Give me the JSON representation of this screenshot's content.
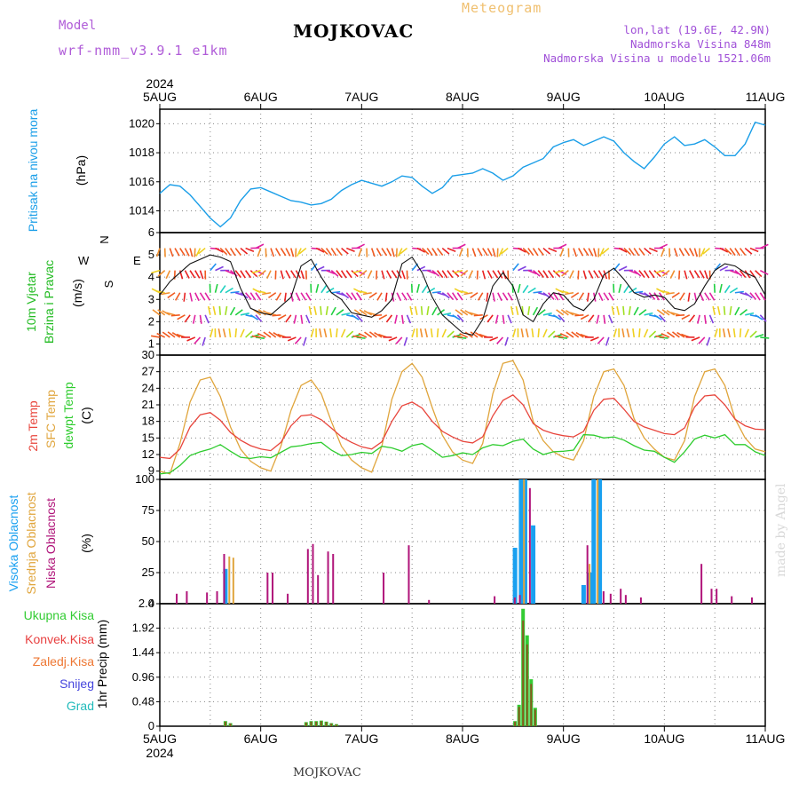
{
  "header": {
    "model_label": "Model",
    "model_name": "wrf-nmm_v3.9.1  e1km",
    "station": "MOJKOVAC",
    "meteogram_label": "Meteogram",
    "coords": "lon,lat (19.6E, 42.9N)",
    "elevation": "Nadmorska Visina 848m",
    "elevation_model": "Nadmorska Visina u modelu 1521.06m"
  },
  "footer": {
    "station": "MOJKOVAC",
    "watermark": "made by Angel"
  },
  "time_axis": {
    "year": "2024",
    "labels": [
      "5AUG",
      "6AUG",
      "7AUG",
      "8AUG",
      "9AUG",
      "10AUG",
      "11AUG"
    ]
  },
  "colors": {
    "pressure": "#1a9ee8",
    "temp2m": "#e8453c",
    "sfc_temp": "#e0a53c",
    "dewpt": "#2ecc2e",
    "high_cloud": "#19a0f0",
    "mid_cloud": "#e0a53c",
    "low_cloud": "#b0147a",
    "total_precip": "#33cc33",
    "conv_precip": "#e84040",
    "frozen": "#ee7733",
    "snow": "#4444dd",
    "hail": "#22bbbb"
  },
  "chart_data": [
    {
      "type": "line",
      "panel": "pressure",
      "ylabel": "Pritisak na nivou mora",
      "unit": "(hPa)",
      "ylim": [
        1012.5,
        1021
      ],
      "yticks": [
        1014,
        1016,
        1018,
        1020
      ],
      "grid": true,
      "x_days": [
        0,
        0.1,
        0.2,
        0.3,
        0.4,
        0.5,
        0.6,
        0.7,
        0.8,
        0.9,
        1,
        1.1,
        1.2,
        1.3,
        1.4,
        1.5,
        1.6,
        1.7,
        1.8,
        1.9,
        2,
        2.1,
        2.2,
        2.3,
        2.4,
        2.5,
        2.6,
        2.7,
        2.8,
        2.9,
        3,
        3.1,
        3.2,
        3.3,
        3.4,
        3.5,
        3.6,
        3.7,
        3.8,
        3.9,
        4,
        4.1,
        4.2,
        4.3,
        4.4,
        4.5,
        4.6,
        4.7,
        4.8,
        4.9,
        5,
        5.1,
        5.2,
        5.3,
        5.4,
        5.5,
        5.6,
        5.7,
        5.8,
        5.9,
        6
      ],
      "series": [
        {
          "name": "",
          "values": [
            1015.2,
            1015.8,
            1015.7,
            1015.1,
            1014.3,
            1013.5,
            1012.9,
            1013.5,
            1014.7,
            1015.5,
            1015.6,
            1015.3,
            1015.0,
            1014.7,
            1014.6,
            1014.4,
            1014.5,
            1014.8,
            1015.4,
            1015.8,
            1016.1,
            1015.9,
            1015.7,
            1016.0,
            1016.4,
            1016.3,
            1015.7,
            1015.2,
            1015.6,
            1016.4,
            1016.5,
            1016.6,
            1016.9,
            1016.6,
            1016.1,
            1016.4,
            1017.0,
            1017.3,
            1017.6,
            1018.4,
            1018.7,
            1018.9,
            1018.5,
            1018.8,
            1019.1,
            1018.8,
            1018.0,
            1017.4,
            1016.9,
            1017.7,
            1018.6,
            1019.1,
            1018.5,
            1018.6,
            1018.9,
            1018.4,
            1017.8,
            1017.8,
            1018.6,
            1020.1,
            1019.9
          ]
        }
      ]
    },
    {
      "type": "line",
      "panel": "wind",
      "ylabel": "10m Vjetar Brzina i Pravac",
      "unit": "(m/s)",
      "compass": {
        "n": "N",
        "w": "W",
        "e": "E",
        "s": "S"
      },
      "ylim": [
        0.5,
        6
      ],
      "yticks": [
        1,
        2,
        3,
        4,
        5,
        6
      ],
      "grid": true,
      "x_days": [
        0,
        0.1,
        0.2,
        0.3,
        0.4,
        0.5,
        0.6,
        0.7,
        0.8,
        0.9,
        1,
        1.1,
        1.2,
        1.3,
        1.4,
        1.5,
        1.6,
        1.7,
        1.8,
        1.9,
        2,
        2.1,
        2.2,
        2.3,
        2.4,
        2.5,
        2.6,
        2.7,
        2.8,
        2.9,
        3,
        3.1,
        3.2,
        3.3,
        3.4,
        3.5,
        3.6,
        3.7,
        3.8,
        3.9,
        4,
        4.1,
        4.2,
        4.3,
        4.4,
        4.5,
        4.6,
        4.7,
        4.8,
        4.9,
        5,
        5.1,
        5.2,
        5.3,
        5.4,
        5.5,
        5.6,
        5.7,
        5.8,
        5.9,
        6
      ],
      "series": [
        {
          "name": "",
          "values": [
            3.2,
            3.8,
            4.2,
            4.6,
            4.8,
            5.0,
            4.9,
            4.7,
            3.5,
            2.6,
            2.4,
            2.3,
            2.7,
            3.1,
            4.5,
            4.8,
            4.0,
            3.3,
            3.0,
            2.4,
            2.3,
            2.2,
            2.5,
            3.0,
            4.6,
            4.9,
            4.2,
            3.1,
            2.3,
            1.9,
            1.5,
            1.4,
            2.1,
            3.6,
            4.2,
            3.6,
            2.3,
            2.0,
            2.8,
            3.3,
            3.2,
            2.7,
            2.5,
            3.0,
            4.1,
            4.4,
            3.9,
            3.3,
            3.1,
            3.2,
            3.1,
            2.6,
            2.5,
            2.8,
            3.6,
            4.3,
            4.6,
            4.5,
            4.2,
            4.0,
            3.2
          ]
        }
      ]
    },
    {
      "type": "line",
      "panel": "temperature",
      "ylabel": "2m Temp / SFC Temp / dewpt Temp",
      "unit": "(C)",
      "ylim": [
        7.5,
        30
      ],
      "yticks": [
        9,
        12,
        15,
        18,
        21,
        24,
        27,
        30
      ],
      "grid": true,
      "x_days": [
        0,
        0.1,
        0.2,
        0.3,
        0.4,
        0.5,
        0.6,
        0.7,
        0.8,
        0.9,
        1,
        1.1,
        1.2,
        1.3,
        1.4,
        1.5,
        1.6,
        1.7,
        1.8,
        1.9,
        2,
        2.1,
        2.2,
        2.3,
        2.4,
        2.5,
        2.6,
        2.7,
        2.8,
        2.9,
        3,
        3.1,
        3.2,
        3.3,
        3.4,
        3.5,
        3.6,
        3.7,
        3.8,
        3.9,
        4,
        4.1,
        4.2,
        4.3,
        4.4,
        4.5,
        4.6,
        4.7,
        4.8,
        4.9,
        5,
        5.1,
        5.2,
        5.3,
        5.4,
        5.5,
        5.6,
        5.7,
        5.8,
        5.9,
        6
      ],
      "series": [
        {
          "name": "2m Temp",
          "values": [
            11.5,
            11.3,
            13.0,
            17.0,
            19.2,
            19.6,
            18.2,
            16.0,
            14.6,
            13.6,
            13.0,
            12.7,
            14.2,
            17.2,
            19.0,
            19.2,
            18.3,
            16.8,
            15.2,
            14.2,
            13.4,
            13.0,
            14.3,
            18.0,
            20.8,
            21.5,
            20.4,
            18.0,
            16.2,
            15.2,
            14.4,
            14.1,
            15.2,
            19.0,
            21.8,
            22.8,
            21.0,
            17.6,
            16.4,
            15.8,
            15.4,
            15.2,
            16.2,
            20.0,
            22.0,
            22.2,
            20.2,
            18.0,
            17.0,
            16.4,
            15.8,
            15.6,
            16.8,
            20.6,
            22.6,
            22.8,
            21.0,
            18.4,
            17.2,
            16.6,
            16.5
          ]
        },
        {
          "name": "SFC Temp",
          "values": [
            9.0,
            8.5,
            14.0,
            21.5,
            25.5,
            26.0,
            22.5,
            17.0,
            13.0,
            10.8,
            9.6,
            9.0,
            13.5,
            20.0,
            24.5,
            25.5,
            23.0,
            18.0,
            13.5,
            11.0,
            9.6,
            8.8,
            13.5,
            22.0,
            27.0,
            28.5,
            26.0,
            20.5,
            15.5,
            12.5,
            11.0,
            10.4,
            14.0,
            23.0,
            28.5,
            29.0,
            25.5,
            18.0,
            14.5,
            12.5,
            11.5,
            11.0,
            14.5,
            22.5,
            27.0,
            27.5,
            24.5,
            18.5,
            15.0,
            13.0,
            11.5,
            11.0,
            14.5,
            22.5,
            27.0,
            27.5,
            24.5,
            18.5,
            15.0,
            13.0,
            12.5
          ]
        },
        {
          "name": "dewpt Temp",
          "values": [
            8.5,
            8.7,
            10.0,
            11.8,
            12.5,
            13.0,
            13.8,
            12.6,
            11.5,
            11.3,
            11.6,
            11.4,
            12.4,
            13.4,
            13.6,
            14.0,
            14.2,
            12.8,
            11.8,
            12.0,
            12.4,
            12.2,
            13.5,
            13.2,
            12.6,
            13.6,
            14.0,
            12.8,
            11.5,
            11.8,
            12.3,
            12.0,
            13.2,
            13.8,
            13.6,
            14.4,
            14.8,
            13.0,
            12.0,
            12.5,
            12.6,
            12.8,
            15.6,
            15.5,
            15.0,
            15.2,
            14.6,
            13.6,
            12.8,
            12.6,
            11.5,
            10.6,
            12.5,
            14.8,
            15.5,
            15.0,
            15.6,
            13.8,
            13.8,
            12.5,
            11.8
          ]
        }
      ]
    },
    {
      "type": "bar",
      "panel": "cloud",
      "ylabel": "Visoka Oblacnost / Srednja Oblacnost / Niska Oblacnost",
      "unit": "(%)",
      "ylim": [
        0,
        100
      ],
      "yticks": [
        0,
        25,
        50,
        75,
        100
      ],
      "grid": true,
      "series": [
        {
          "name": "Visoka Oblacnost",
          "x_days": [
            0.65,
            3.52,
            3.58,
            3.62,
            3.7,
            4.2,
            4.26,
            4.3,
            4.36
          ],
          "values": [
            28,
            45,
            100,
            100,
            63,
            15,
            25,
            100,
            100
          ]
        },
        {
          "name": "Srednja Oblacnost",
          "x_days": [
            0.68,
            0.72,
            3.6,
            4.25,
            4.33
          ],
          "values": [
            38,
            37,
            100,
            32,
            100
          ]
        },
        {
          "name": "Niska Oblacnost",
          "x_days": [
            0.15,
            0.25,
            0.45,
            0.55,
            0.62,
            1.05,
            1.1,
            1.25,
            1.45,
            1.5,
            1.55,
            1.65,
            1.7,
            2.2,
            2.45,
            2.65,
            3.3,
            3.5,
            3.55,
            3.65,
            4.22,
            4.38,
            4.45,
            4.55,
            4.6,
            4.75,
            5.35,
            5.45,
            5.5,
            5.65,
            5.85
          ]
        }
      ]
    },
    {
      "type": "bar",
      "panel": "precip",
      "ylabel": "1hr Precip (mm)",
      "ylim": [
        0,
        2.4
      ],
      "yticks": [
        0,
        0.48,
        0.96,
        1.44,
        1.92,
        2.4
      ],
      "grid": true,
      "series": [
        {
          "name": "Ukupna Kisa",
          "x_days": [
            0.65,
            0.7,
            1.45,
            1.5,
            1.55,
            1.6,
            1.65,
            1.7,
            1.75,
            3.52,
            3.56,
            3.6,
            3.64,
            3.68,
            3.72
          ],
          "values": [
            0.1,
            0.06,
            0.08,
            0.1,
            0.1,
            0.11,
            0.09,
            0.06,
            0.04,
            0.1,
            0.42,
            2.3,
            1.78,
            0.92,
            0.36
          ]
        },
        {
          "name": "Konvek.Kisa",
          "x_days": [],
          "values": []
        },
        {
          "name": "Zaledj.Kisa",
          "x_days": [],
          "values": []
        },
        {
          "name": "Snijeg",
          "x_days": [],
          "values": []
        },
        {
          "name": "Grad",
          "x_days": [],
          "values": []
        }
      ]
    }
  ]
}
